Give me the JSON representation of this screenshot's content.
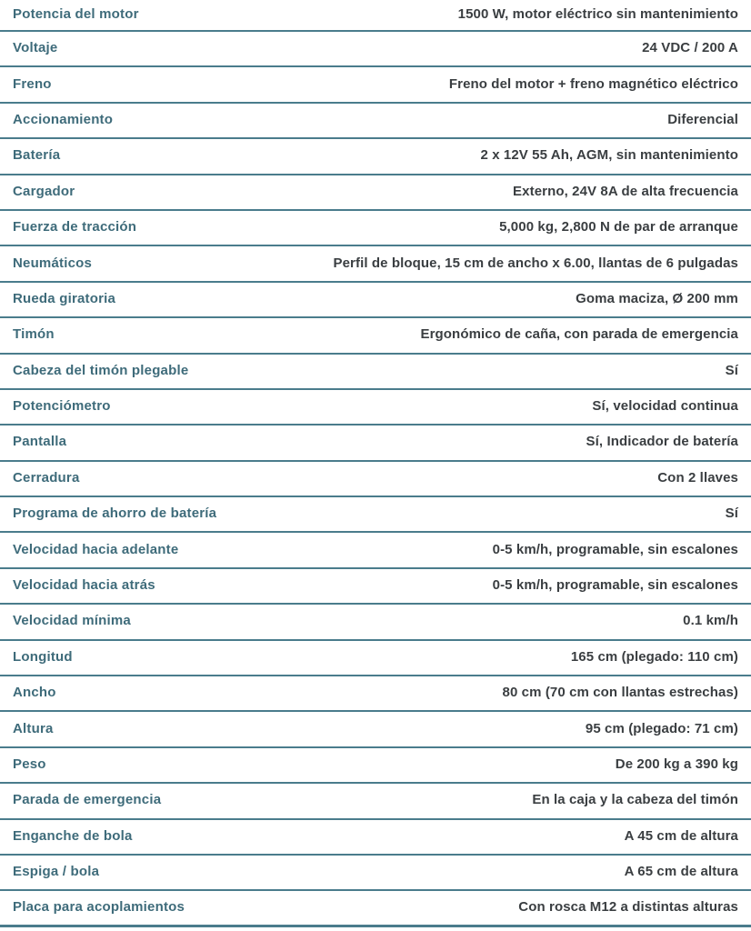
{
  "colors": {
    "background": "#ffffff",
    "label": "#3e6b7a",
    "value": "#3a3e41",
    "divider": "#4a7c8c"
  },
  "spec_table": {
    "rows": [
      {
        "label": "Potencia del motor",
        "value": "1500 W, motor eléctrico sin mantenimiento"
      },
      {
        "label": "Voltaje",
        "value": "24 VDC / 200 A"
      },
      {
        "label": "Freno",
        "value": "Freno del motor + freno magnético eléctrico"
      },
      {
        "label": "Accionamiento",
        "value": "Diferencial"
      },
      {
        "label": "Batería",
        "value": "2 x 12V 55 Ah, AGM, sin mantenimiento"
      },
      {
        "label": "Cargador",
        "value": "Externo, 24V 8A de alta frecuencia"
      },
      {
        "label": "Fuerza de tracción",
        "value": "5,000 kg, 2,800 N de par de arranque"
      },
      {
        "label": "Neumáticos",
        "value": "Perfil de bloque, 15 cm de ancho x 6.00, llantas de 6 pulgadas"
      },
      {
        "label": "Rueda giratoria",
        "value": "Goma maciza, Ø 200 mm"
      },
      {
        "label": "Timón",
        "value": "Ergonómico de caña, con parada de emergencia"
      },
      {
        "label": "Cabeza del timón plegable",
        "value": "Sí"
      },
      {
        "label": "Potenciómetro",
        "value": "Sí, velocidad continua"
      },
      {
        "label": "Pantalla",
        "value": "Sí, Indicador de batería"
      },
      {
        "label": "Cerradura",
        "value": "Con 2 llaves"
      },
      {
        "label": "Programa de ahorro de batería",
        "value": "Sí"
      },
      {
        "label": "Velocidad hacia adelante",
        "value": "0-5 km/h, programable, sin escalones"
      },
      {
        "label": "Velocidad hacia atrás",
        "value": "0-5 km/h, programable, sin escalones"
      },
      {
        "label": "Velocidad mínima",
        "value": "0.1 km/h"
      },
      {
        "label": "Longitud",
        "value": "165 cm (plegado: 110 cm)"
      },
      {
        "label": "Ancho",
        "value": "80 cm (70 cm con llantas estrechas)"
      },
      {
        "label": "Altura",
        "value": "95 cm (plegado: 71 cm)"
      },
      {
        "label": "Peso",
        "value": "De 200 kg a 390 kg"
      },
      {
        "label": "Parada de emergencia",
        "value": "En la caja y la cabeza del timón"
      },
      {
        "label": "Enganche de bola",
        "value": "A 45 cm de altura"
      },
      {
        "label": "Espiga / bola",
        "value": "A 65 cm de altura"
      },
      {
        "label": "Placa para acoplamientos",
        "value": "Con rosca M12 a distintas alturas"
      }
    ]
  }
}
